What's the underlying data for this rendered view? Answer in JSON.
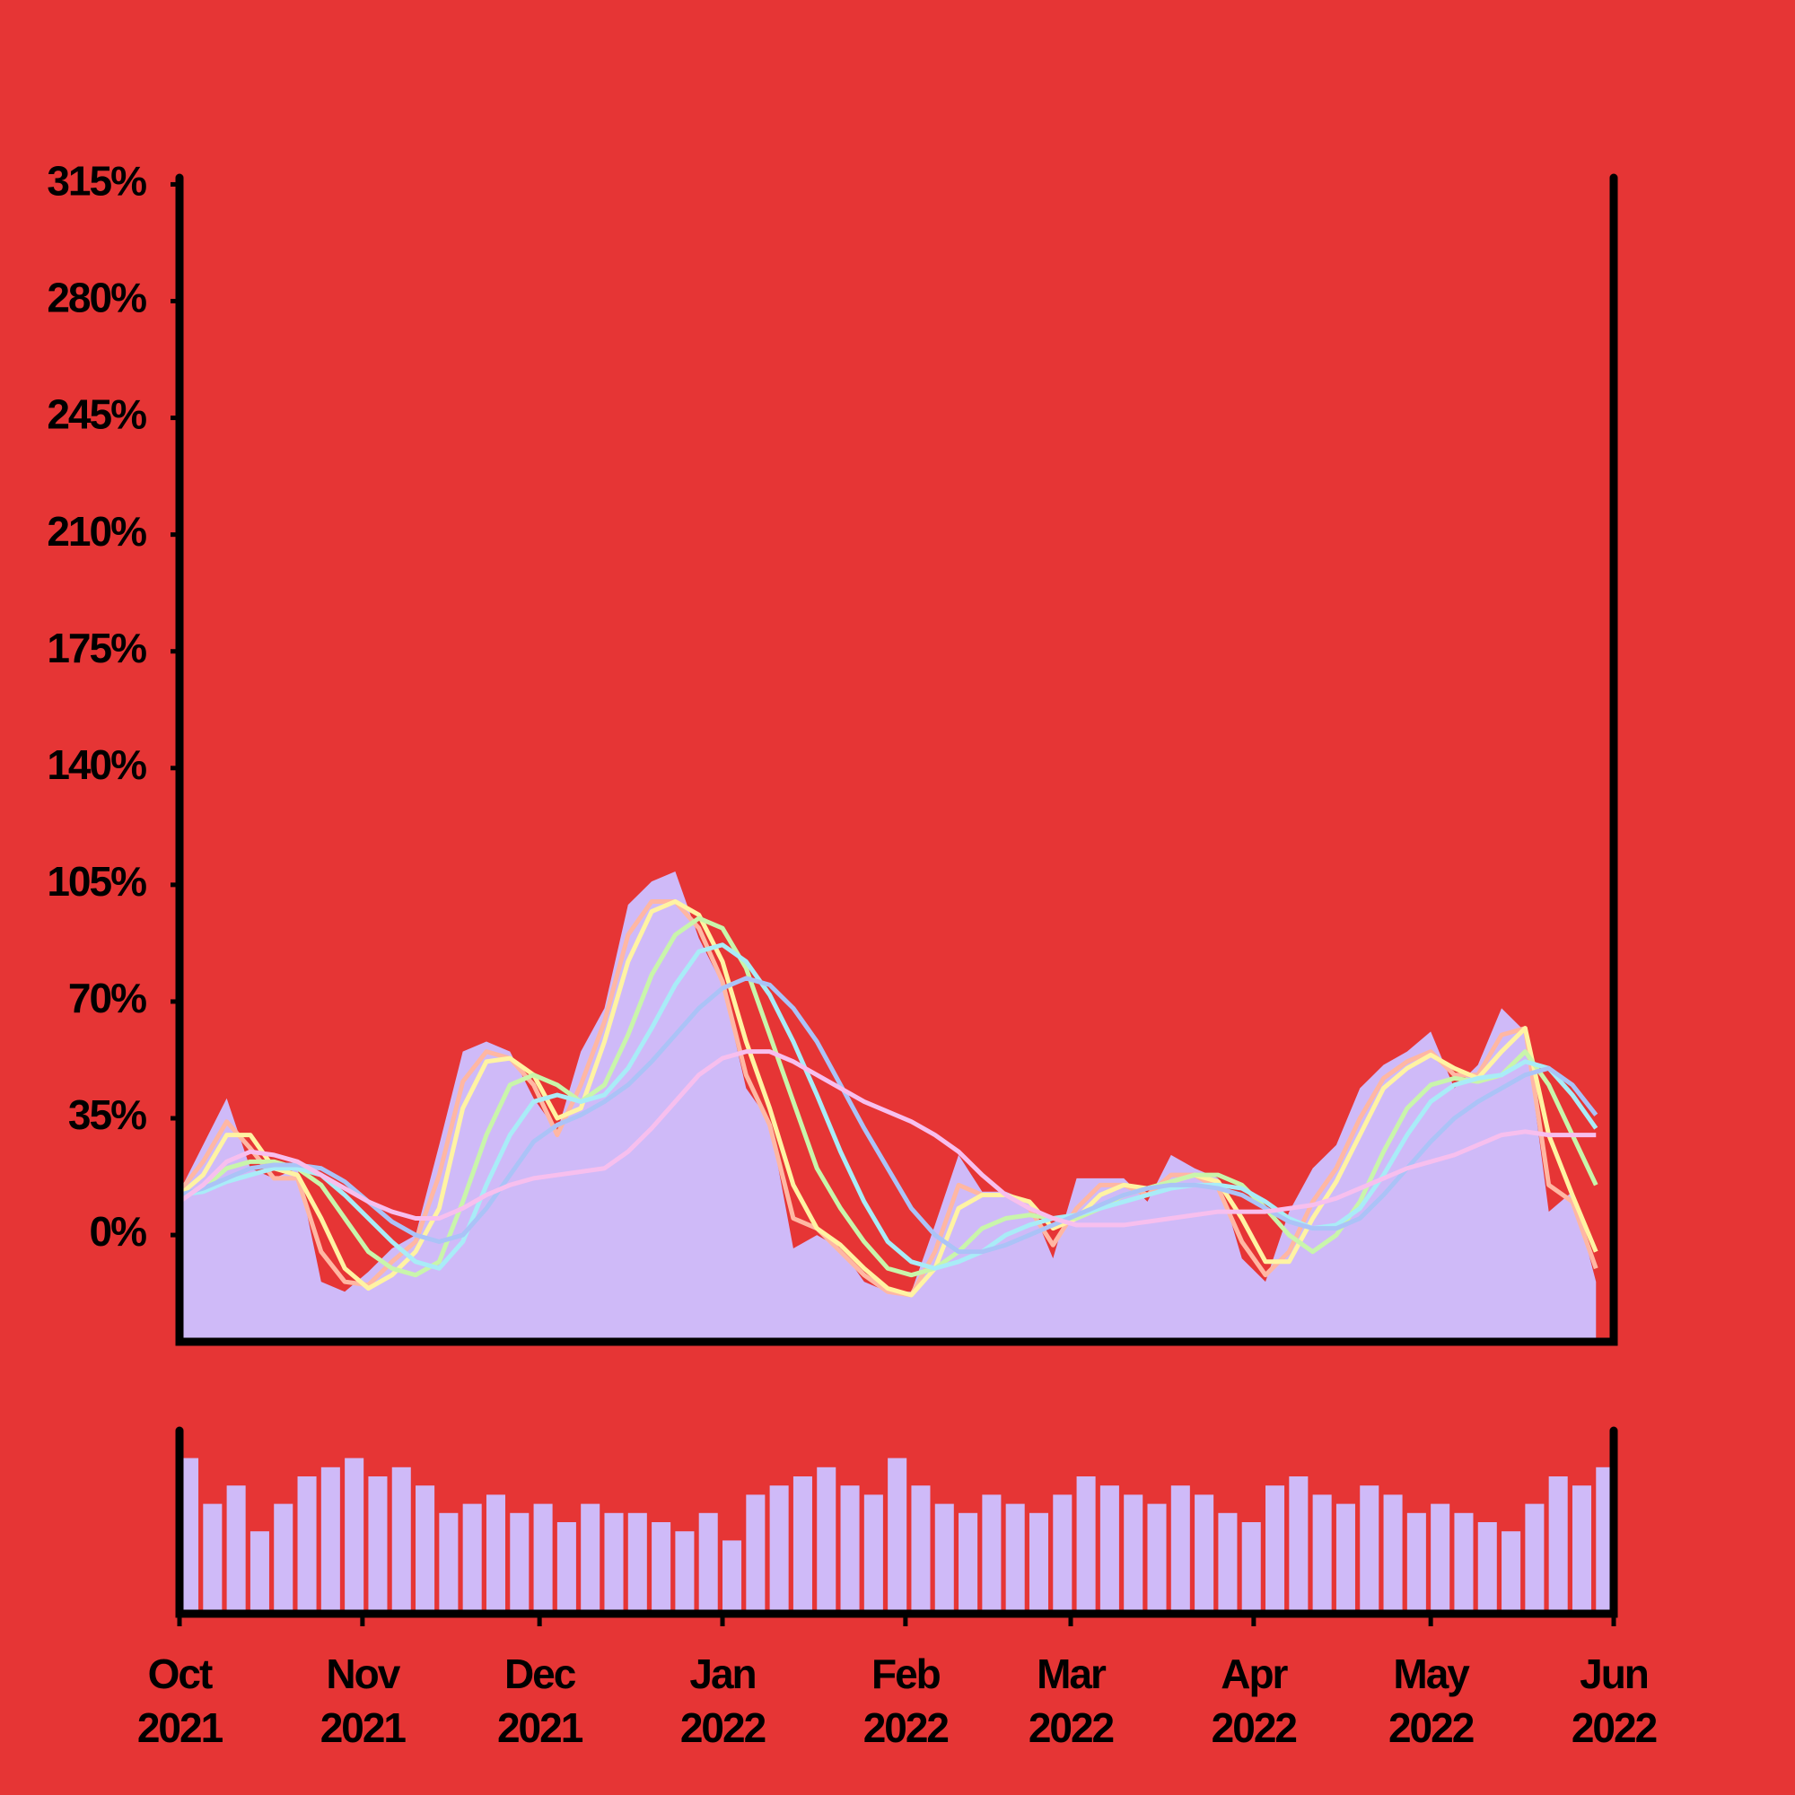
{
  "chart_data": [
    {
      "type": "area",
      "x": [
        0,
        4,
        8,
        12,
        16,
        20,
        24,
        28,
        32,
        36,
        40,
        44,
        48,
        52,
        56,
        60,
        64,
        68,
        72,
        76,
        80,
        84,
        88,
        92,
        96,
        100,
        104,
        108,
        112,
        116,
        120,
        124,
        128,
        132,
        136,
        140,
        144,
        148,
        152,
        156,
        160,
        164,
        168,
        172,
        176,
        180,
        184,
        188,
        192,
        196,
        200,
        204,
        208,
        212,
        216,
        220,
        224,
        228,
        232,
        236,
        240
      ],
      "xlim": [
        0,
        243
      ],
      "ylim": [
        -32,
        317
      ],
      "yticks": [
        {
          "value": 0,
          "label": "0%"
        },
        {
          "value": 35,
          "label": "35%"
        },
        {
          "value": 70,
          "label": "70%"
        },
        {
          "value": 105,
          "label": "105%"
        },
        {
          "value": 140,
          "label": "140%"
        },
        {
          "value": 175,
          "label": "175%"
        },
        {
          "value": 210,
          "label": "210%"
        },
        {
          "value": 245,
          "label": "245%"
        },
        {
          "value": 280,
          "label": "280%"
        },
        {
          "value": 315,
          "label": "315%"
        }
      ],
      "series": [
        {
          "type": "area",
          "color": "#cfbaf8",
          "values": [
            13,
            27,
            41,
            20,
            17,
            20,
            -14,
            -17,
            -11,
            -4,
            0,
            27,
            55,
            58,
            55,
            41,
            31,
            55,
            68,
            99,
            106,
            109,
            89,
            75,
            44,
            34,
            -4,
            0,
            -4,
            -14,
            -17,
            -17,
            3,
            24,
            13,
            13,
            10,
            -7,
            17,
            17,
            17,
            10,
            24,
            20,
            17,
            -7,
            -14,
            7,
            20,
            27,
            44,
            51,
            55,
            61,
            44,
            51,
            68,
            61,
            7,
            13,
            -14
          ]
        },
        {
          "type": "line",
          "color": "#ffb7a3",
          "values": [
            13,
            22,
            34,
            26,
            17,
            17,
            -5,
            -14,
            -15,
            -8,
            -2,
            18,
            46,
            55,
            53,
            45,
            30,
            45,
            64,
            90,
            100,
            100,
            92,
            76,
            48,
            33,
            5,
            2,
            -5,
            -12,
            -17,
            -18,
            -5,
            15,
            12,
            12,
            8,
            -3,
            8,
            15,
            15,
            12,
            18,
            18,
            14,
            -2,
            -12,
            -5,
            10,
            20,
            35,
            47,
            52,
            55,
            48,
            48,
            60,
            62,
            15,
            10,
            -10
          ]
        },
        {
          "type": "line",
          "color": "#fff3a3",
          "values": [
            12,
            18,
            30,
            30,
            20,
            18,
            5,
            -10,
            -16,
            -12,
            -5,
            8,
            38,
            52,
            53,
            48,
            35,
            38,
            58,
            82,
            97,
            100,
            96,
            82,
            58,
            38,
            15,
            2,
            -3,
            -10,
            -16,
            -18,
            -10,
            8,
            12,
            12,
            10,
            2,
            5,
            12,
            15,
            14,
            16,
            18,
            16,
            5,
            -8,
            -8,
            5,
            16,
            30,
            44,
            50,
            54,
            50,
            47,
            55,
            62,
            30,
            12,
            -5
          ]
        },
        {
          "type": "line",
          "color": "#c9f5ab",
          "values": [
            12,
            14,
            20,
            22,
            22,
            20,
            15,
            5,
            -5,
            -10,
            -12,
            -8,
            10,
            30,
            45,
            48,
            45,
            40,
            45,
            60,
            78,
            90,
            95,
            92,
            80,
            60,
            40,
            20,
            8,
            -2,
            -10,
            -12,
            -10,
            -5,
            2,
            5,
            6,
            5,
            5,
            8,
            12,
            14,
            16,
            18,
            18,
            15,
            8,
            0,
            -5,
            0,
            10,
            25,
            38,
            45,
            47,
            46,
            48,
            55,
            45,
            30,
            15
          ]
        },
        {
          "type": "line",
          "color": "#a9ecf7",
          "values": [
            12,
            13,
            16,
            18,
            20,
            20,
            18,
            12,
            5,
            -2,
            -8,
            -10,
            -2,
            15,
            30,
            40,
            42,
            40,
            42,
            50,
            62,
            75,
            85,
            87,
            82,
            72,
            58,
            42,
            25,
            10,
            -2,
            -8,
            -10,
            -8,
            -5,
            0,
            3,
            5,
            6,
            8,
            10,
            12,
            14,
            15,
            15,
            14,
            10,
            5,
            2,
            3,
            8,
            18,
            30,
            40,
            45,
            47,
            48,
            52,
            50,
            42,
            32
          ]
        },
        {
          "type": "line",
          "color": "#abc3f7",
          "values": [
            12,
            14,
            17,
            20,
            21,
            21,
            20,
            16,
            10,
            4,
            0,
            -2,
            0,
            8,
            18,
            28,
            33,
            36,
            40,
            45,
            52,
            60,
            68,
            74,
            77,
            75,
            68,
            58,
            45,
            32,
            20,
            8,
            0,
            -5,
            -5,
            -3,
            0,
            3,
            6,
            9,
            12,
            14,
            15,
            15,
            14,
            12,
            8,
            4,
            2,
            2,
            5,
            12,
            20,
            28,
            35,
            40,
            44,
            48,
            50,
            45,
            36
          ]
        },
        {
          "type": "line",
          "color": "#f7bfee",
          "values": [
            10,
            15,
            22,
            25,
            24,
            22,
            18,
            14,
            10,
            7,
            5,
            5,
            8,
            12,
            15,
            17,
            18,
            19,
            20,
            25,
            32,
            40,
            48,
            53,
            55,
            55,
            52,
            48,
            44,
            40,
            37,
            34,
            30,
            25,
            18,
            12,
            8,
            5,
            3,
            3,
            3,
            4,
            5,
            6,
            7,
            7,
            7,
            8,
            9,
            11,
            14,
            17,
            20,
            22,
            24,
            27,
            30,
            31,
            30,
            30,
            30
          ]
        }
      ]
    },
    {
      "type": "bar",
      "x": [
        0,
        4,
        8,
        12,
        16,
        20,
        24,
        28,
        32,
        36,
        40,
        44,
        48,
        52,
        56,
        60,
        64,
        68,
        72,
        76,
        80,
        84,
        88,
        92,
        96,
        100,
        104,
        108,
        112,
        116,
        120,
        124,
        128,
        132,
        136,
        140,
        144,
        148,
        152,
        156,
        160,
        164,
        168,
        172,
        176,
        180,
        184,
        188,
        192,
        196,
        200,
        204,
        208,
        212,
        216,
        220,
        224,
        228,
        232,
        236,
        240
      ],
      "xlim": [
        0,
        243
      ],
      "ylim": [
        0,
        100
      ],
      "color": "#cfbaf8",
      "values": [
        85,
        60,
        70,
        45,
        60,
        75,
        80,
        85,
        75,
        80,
        70,
        55,
        60,
        65,
        55,
        60,
        50,
        60,
        55,
        55,
        50,
        45,
        55,
        40,
        65,
        70,
        75,
        80,
        70,
        65,
        85,
        70,
        60,
        55,
        65,
        60,
        55,
        65,
        75,
        70,
        65,
        60,
        70,
        65,
        55,
        50,
        70,
        75,
        65,
        60,
        70,
        65,
        55,
        60,
        55,
        50,
        45,
        60,
        75,
        70,
        80
      ],
      "xticks": [
        {
          "value": 0,
          "label": "Oct 2021"
        },
        {
          "value": 31,
          "label": "Nov 2021"
        },
        {
          "value": 61,
          "label": "Dec 2021"
        },
        {
          "value": 92,
          "label": "Jan 2022"
        },
        {
          "value": 123,
          "label": "Feb 2022"
        },
        {
          "value": 151,
          "label": "Mar 2022"
        },
        {
          "value": 182,
          "label": "Apr 2022"
        },
        {
          "value": 212,
          "label": "May 2022"
        },
        {
          "value": 243,
          "label": "Jun 2022"
        }
      ]
    }
  ]
}
